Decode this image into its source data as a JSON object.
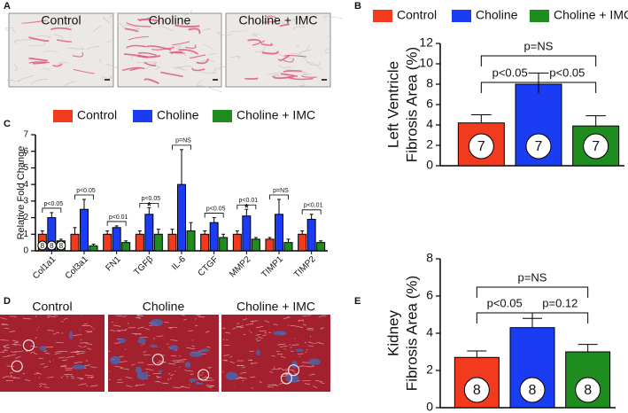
{
  "panel_labels": {
    "a": "A",
    "b": "B",
    "c": "C",
    "d": "D",
    "e": "E"
  },
  "panel_a": {
    "image_labels": [
      "Control",
      "Choline",
      "Choline + IMC"
    ]
  },
  "panel_d": {
    "image_labels": [
      "Control",
      "Choline",
      "Choline + IMC"
    ]
  },
  "chart_data": [
    {
      "type": "bar",
      "ylabel": [
        "Left Ventricle",
        "Fibrosis Area (%)"
      ],
      "ylim": [
        0,
        12
      ],
      "yticks": [
        0,
        2,
        4,
        6,
        8,
        10,
        12
      ],
      "legend": true,
      "series": [
        {
          "name": "Control",
          "color": "#f23a1e",
          "values": [
            4.2
          ],
          "errors": [
            0.8
          ],
          "n": [
            7
          ]
        },
        {
          "name": "Choline",
          "color": "#1a3cf2",
          "values": [
            8.0
          ],
          "errors": [
            1.1
          ],
          "n": [
            7
          ]
        },
        {
          "name": "Choline + IMC",
          "color": "#1e8c1e",
          "values": [
            3.9
          ],
          "errors": [
            1.0
          ],
          "n": [
            7
          ]
        }
      ],
      "comparisons": [
        "p<0.05",
        "p<0.05",
        "p=NS"
      ]
    },
    {
      "type": "grouped_bar",
      "ylabel": [
        "Relative Fold Change"
      ],
      "ylim": [
        0,
        7
      ],
      "yticks": [
        0,
        1,
        2,
        3,
        4,
        5,
        6,
        7
      ],
      "legend": true,
      "categories": [
        "Col1a1",
        "Col3a1",
        "FN1",
        "TGFβ",
        "IL-6",
        "CTGF",
        "MMP2",
        "TIMP1",
        "TIMP2"
      ],
      "series": [
        {
          "name": "Control",
          "color": "#f23a1e",
          "values": [
            1.0,
            1.0,
            1.0,
            1.0,
            1.0,
            1.0,
            1.0,
            0.7,
            1.0
          ],
          "errors": [
            0.2,
            0.4,
            0.2,
            0.2,
            0.3,
            0.2,
            0.2,
            0.1,
            0.2
          ],
          "n": [
            8,
            null,
            null,
            null,
            null,
            null,
            null,
            null,
            null
          ]
        },
        {
          "name": "Choline",
          "color": "#1a3cf2",
          "values": [
            2.0,
            2.5,
            1.4,
            2.2,
            4.0,
            1.7,
            2.1,
            2.2,
            1.9
          ],
          "errors": [
            0.3,
            0.6,
            0.1,
            0.4,
            2.1,
            0.3,
            0.4,
            0.9,
            0.3
          ],
          "n": [
            8,
            null,
            null,
            null,
            null,
            null,
            null,
            null,
            null
          ]
        },
        {
          "name": "Choline + IMC",
          "color": "#1e8c1e",
          "values": [
            0.6,
            0.3,
            0.5,
            1.0,
            1.2,
            0.8,
            0.7,
            0.5,
            0.5
          ],
          "errors": [
            0.1,
            0.1,
            0.1,
            0.3,
            0.5,
            0.2,
            0.1,
            0.2,
            0.1
          ],
          "n": [
            8,
            null,
            null,
            null,
            null,
            null,
            null,
            null,
            null
          ]
        }
      ],
      "annotations": [
        "p<0.05",
        "p<0.05",
        "p<0.01",
        "p<0.05",
        "p=NS",
        "p<0.05",
        "p<0.01",
        "p=NS",
        "p<0.01"
      ],
      "star_labels": [
        null,
        null,
        null,
        "*",
        null,
        null,
        "*",
        null,
        null
      ]
    },
    {
      "type": "bar",
      "ylabel": [
        "Kidney",
        "Fibrosis Area (%)"
      ],
      "ylim": [
        0,
        8
      ],
      "yticks": [
        0,
        2,
        4,
        6,
        8
      ],
      "legend": false,
      "series": [
        {
          "color": "#f23a1e",
          "values": [
            2.7
          ],
          "errors": [
            0.35
          ],
          "n": [
            8
          ]
        },
        {
          "color": "#1a3cf2",
          "values": [
            4.3
          ],
          "errors": [
            0.5
          ],
          "n": [
            8
          ]
        },
        {
          "color": "#1e8c1e",
          "values": [
            3.0
          ],
          "errors": [
            0.4
          ],
          "n": [
            8
          ]
        }
      ],
      "comparisons": [
        "p<0.05",
        "p=0.12",
        "p=NS"
      ]
    }
  ]
}
